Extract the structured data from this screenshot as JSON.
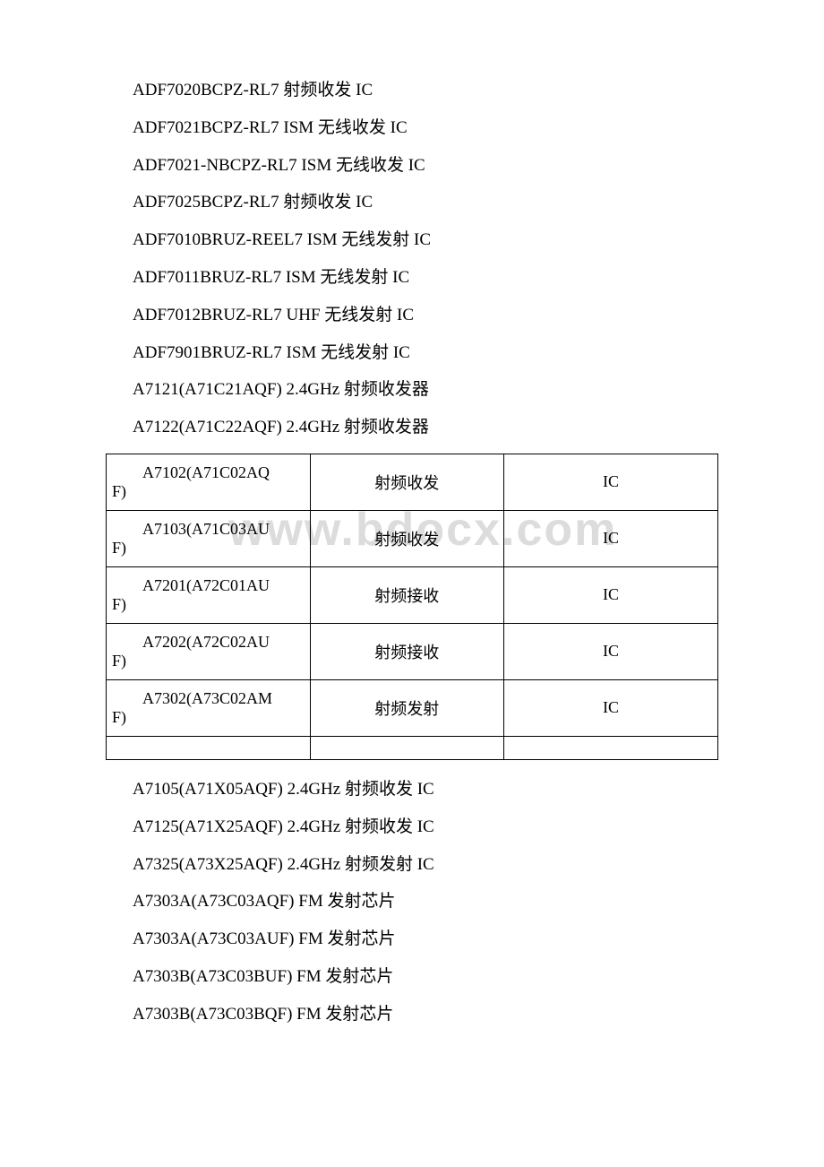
{
  "watermark": "www.bdocx.com",
  "top_list": [
    "ADF7020BCPZ-RL7 射频收发 IC",
    "ADF7021BCPZ-RL7 ISM 无线收发 IC",
    "ADF7021-NBCPZ-RL7 ISM 无线收发 IC",
    "ADF7025BCPZ-RL7 射频收发 IC",
    "ADF7010BRUZ-REEL7 ISM 无线发射 IC",
    "ADF7011BRUZ-RL7 ISM 无线发射 IC",
    "ADF7012BRUZ-RL7 UHF 无线发射 IC",
    "ADF7901BRUZ-RL7 ISM 无线发射 IC",
    "A7121(A71C21AQF) 2.4GHz 射频收发器",
    "A7122(A71C22AQF) 2.4GHz 射频收发器"
  ],
  "table": {
    "rows": [
      {
        "part": "A7102(A71C02AQ",
        "suffix": "F)",
        "desc": "射频收发",
        "type": "IC"
      },
      {
        "part": "A7103(A71C03AU",
        "suffix": "F)",
        "desc": "射频收发",
        "type": "IC"
      },
      {
        "part": "A7201(A72C01AU",
        "suffix": "F)",
        "desc": "射频接收",
        "type": "IC"
      },
      {
        "part": "A7202(A72C02AU",
        "suffix": "F)",
        "desc": "射频接收",
        "type": "IC"
      },
      {
        "part": "A7302(A73C02AM",
        "suffix": "F)",
        "desc": "射频发射",
        "type": "IC"
      }
    ]
  },
  "bottom_list": [
    "A7105(A71X05AQF) 2.4GHz 射频收发 IC",
    "A7125(A71X25AQF) 2.4GHz 射频收发 IC",
    "A7325(A73X25AQF) 2.4GHz 射频发射 IC",
    "A7303A(A73C03AQF) FM 发射芯片",
    "A7303A(A73C03AUF) FM 发射芯片",
    "A7303B(A73C03BUF) FM 发射芯片",
    "A7303B(A73C03BQF) FM 发射芯片"
  ]
}
